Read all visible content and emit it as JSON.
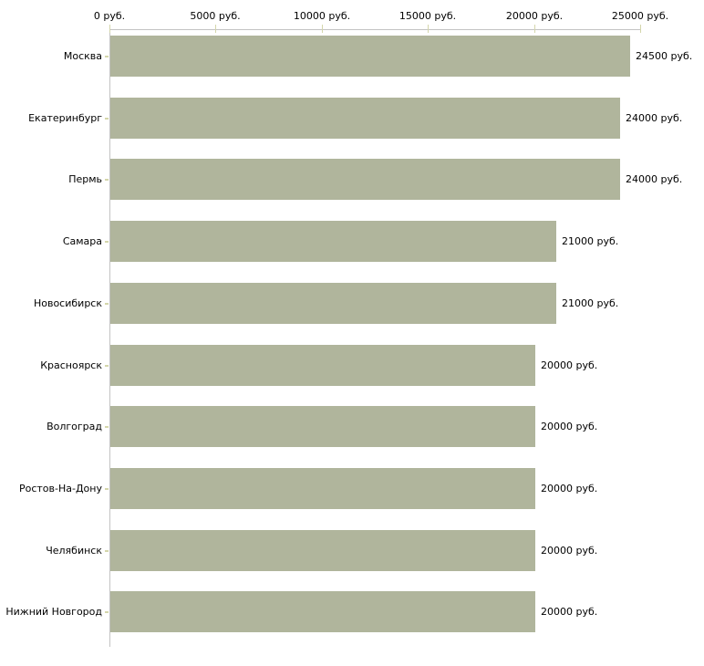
{
  "chart_data": {
    "type": "bar",
    "orientation": "horizontal",
    "title": "",
    "categories": [
      "Москва",
      "Екатеринбург",
      "Пермь",
      "Самара",
      "Новосибирск",
      "Красноярск",
      "Волгоград",
      "Ростов-На-Дону",
      "Челябинск",
      "Нижний Новгород"
    ],
    "values": [
      24500,
      24000,
      24000,
      21000,
      21000,
      20000,
      20000,
      20000,
      20000,
      20000
    ],
    "value_labels": [
      "24500 руб.",
      "24000 руб.",
      "24000 руб.",
      "21000 руб.",
      "21000 руб.",
      "20000 руб.",
      "20000 руб.",
      "20000 руб.",
      "20000 руб.",
      "20000 руб."
    ],
    "unit": "руб.",
    "x_axis": {
      "position": "top",
      "min": 0,
      "max": 25000,
      "tick_values": [
        0,
        5000,
        10000,
        15000,
        20000,
        25000
      ],
      "tick_labels": [
        "0 руб.",
        "5000 руб.",
        "10000 руб.",
        "15000 руб.",
        "20000 руб.",
        "25000 руб."
      ]
    },
    "legend": null,
    "grid": false,
    "colors": {
      "bar": "#b0b59c",
      "axis_line": "#c3c3c3",
      "tick_mark": "#d4d6ab",
      "text": "#000000",
      "background": "#ffffff"
    }
  }
}
